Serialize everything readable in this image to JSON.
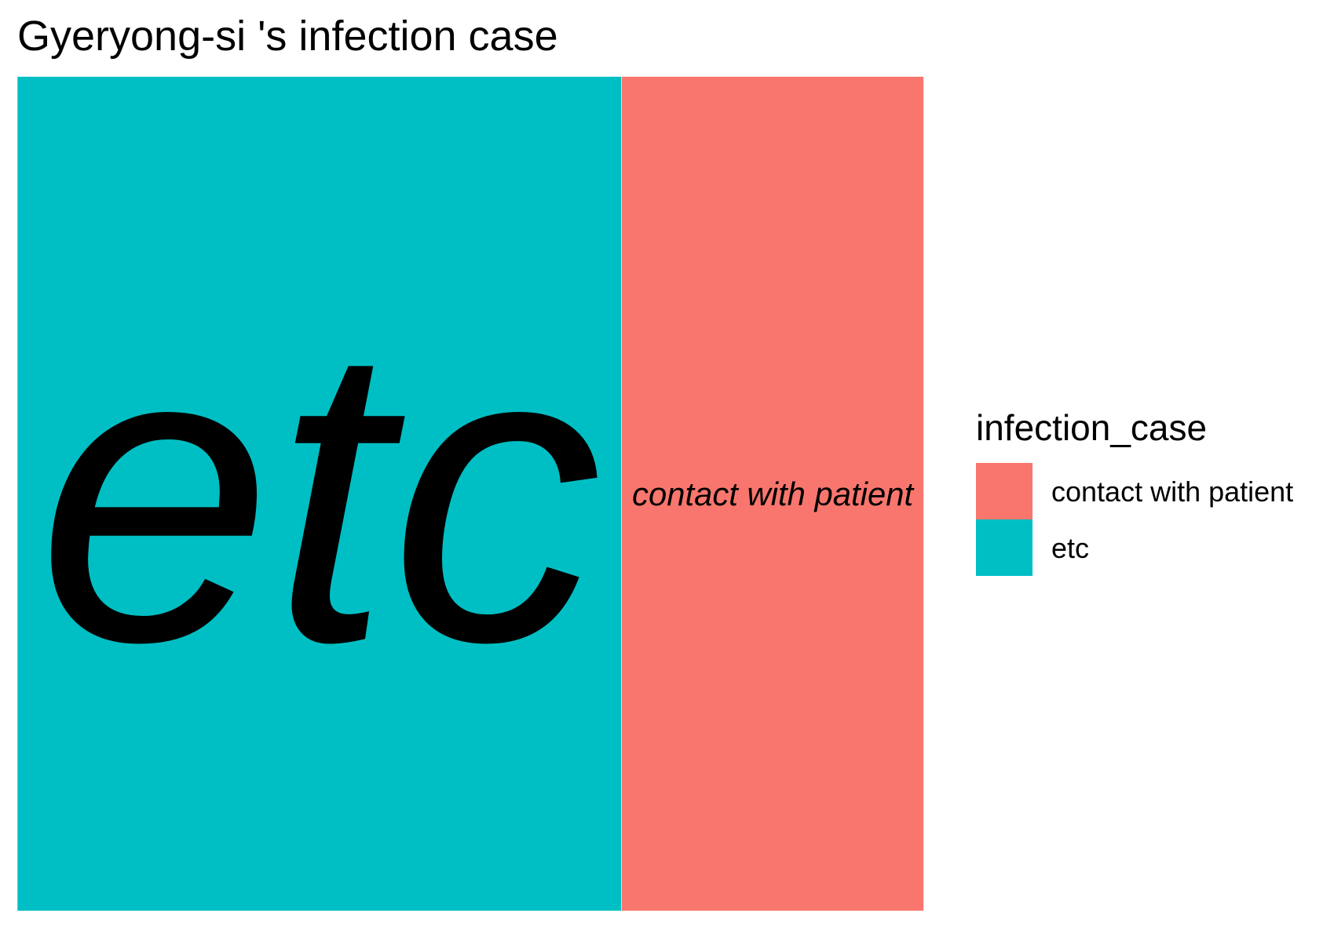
{
  "chart_data": {
    "type": "treemap",
    "title": "Gyeryong-si 's infection case",
    "categories": [
      "contact with patient",
      "etc"
    ],
    "values": [
      1,
      2
    ],
    "colors": [
      "#F8766D",
      "#00BFC4"
    ],
    "legend": {
      "title": "infection_case",
      "position": "right"
    },
    "grid": false
  }
}
